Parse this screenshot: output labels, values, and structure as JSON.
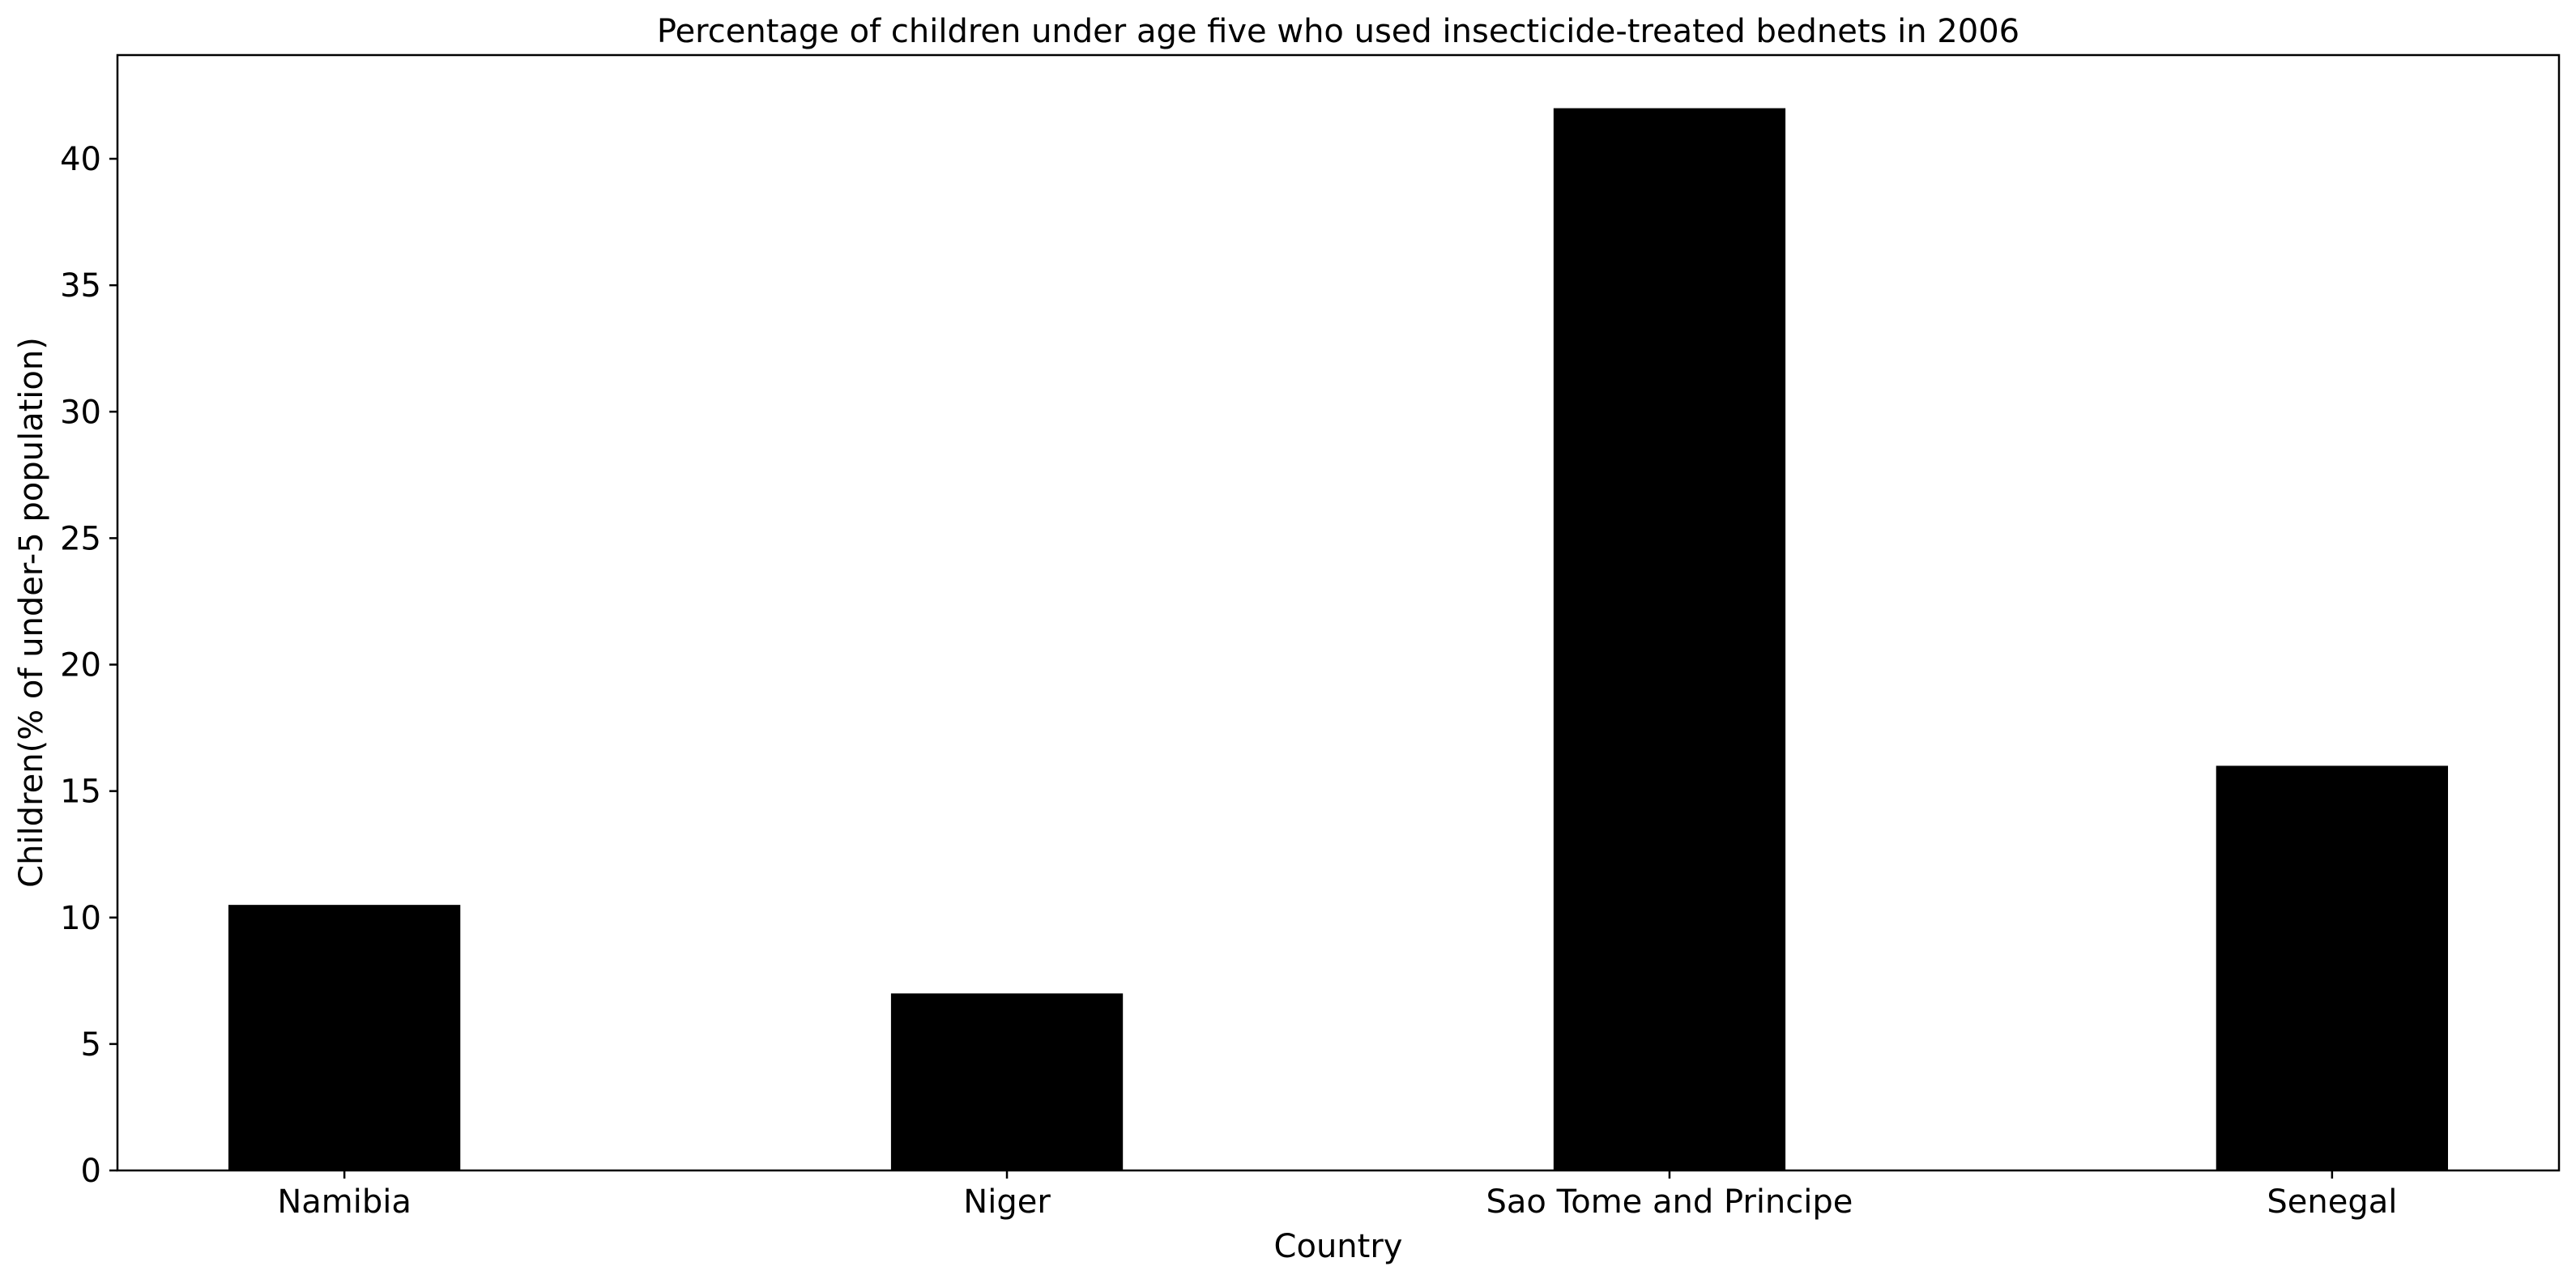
{
  "chart_data": {
    "type": "bar",
    "title": "Percentage of children under age five who used insecticide-treated bednets in 2006",
    "xlabel": "Country",
    "ylabel": "Children(% of under-5 population)",
    "categories": [
      "Namibia",
      "Niger",
      "Sao Tome and Principe",
      "Senegal"
    ],
    "values": [
      10.5,
      7.0,
      42.0,
      16.0
    ],
    "ylim": [
      0,
      44.1
    ],
    "yticks": [
      0,
      5,
      10,
      15,
      20,
      25,
      30,
      35,
      40
    ],
    "grid": false,
    "legend": "none",
    "bar_color": "#000000",
    "axis_color": "#000000",
    "background_color": "#ffffff"
  }
}
